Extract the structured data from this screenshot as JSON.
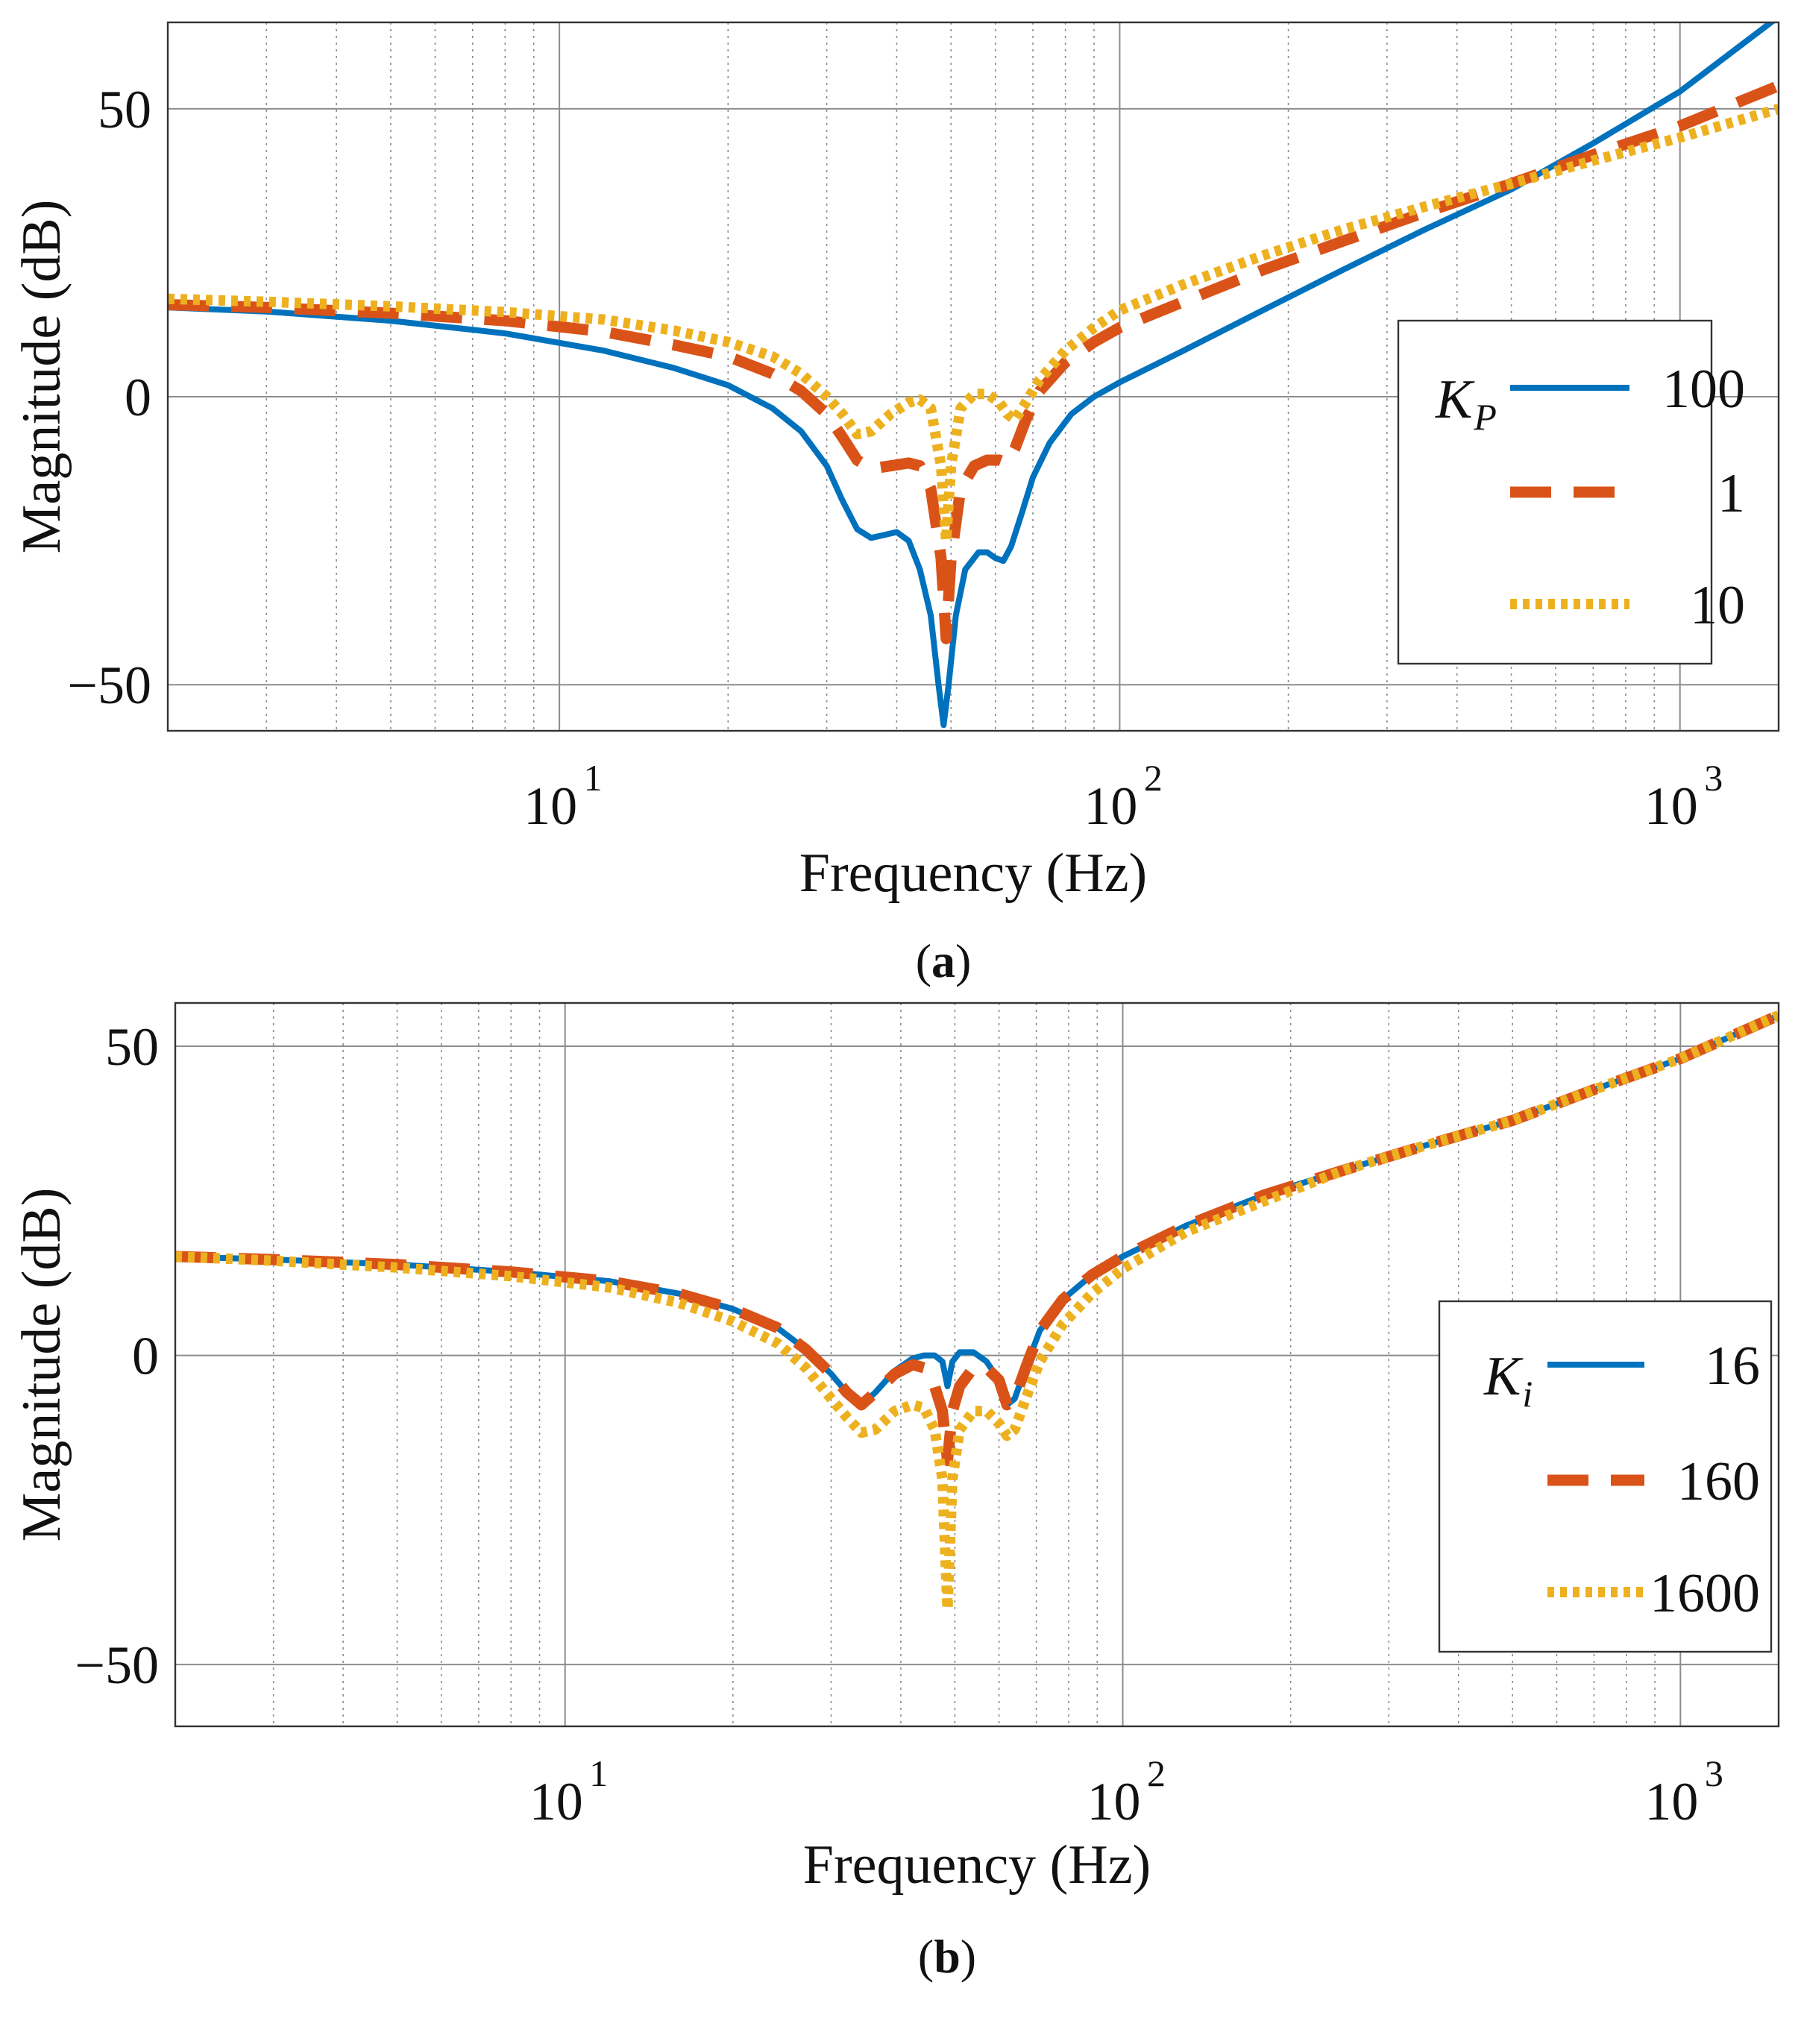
{
  "chart_data": [
    {
      "type": "line",
      "panel_label": "a",
      "xlabel": "Frequency  (Hz)",
      "ylabel": "Magnitude (dB)",
      "xscale": "log",
      "xlim": [
        2,
        1500
      ],
      "ylim": [
        -58,
        65
      ],
      "yticks": [
        -50,
        0,
        50
      ],
      "ytick_labels": [
        "−50",
        "0",
        "50"
      ],
      "xticks": [
        10,
        100,
        1000
      ],
      "xtick_labels": [
        {
          "base": "10",
          "exp": "1"
        },
        {
          "base": "10",
          "exp": "2"
        },
        {
          "base": "10",
          "exp": "3"
        }
      ],
      "grid": true,
      "legend_title": {
        "symbol": "K",
        "sub": "P"
      },
      "legend_position": "right",
      "series": [
        {
          "name": "100",
          "color": "#0072BD",
          "style": "solid",
          "points": [
            [
              2,
              15.5
            ],
            [
              3,
              14.8
            ],
            [
              5,
              13.2
            ],
            [
              8,
              11.0
            ],
            [
              12,
              8.0
            ],
            [
              16,
              5.0
            ],
            [
              20,
              2.0
            ],
            [
              24,
              -2.0
            ],
            [
              27,
              -6.0
            ],
            [
              30,
              -12.0
            ],
            [
              32,
              -18.0
            ],
            [
              34,
              -23.0
            ],
            [
              36,
              -24.5
            ],
            [
              38,
              -24.0
            ],
            [
              40,
              -23.5
            ],
            [
              42,
              -25.0
            ],
            [
              44,
              -30.0
            ],
            [
              46,
              -38.0
            ],
            [
              47.5,
              -50.0
            ],
            [
              48.5,
              -57.0
            ],
            [
              49.5,
              -50.0
            ],
            [
              51,
              -38.0
            ],
            [
              53,
              -30.0
            ],
            [
              56,
              -27.0
            ],
            [
              58,
              -27.0
            ],
            [
              60,
              -28.0
            ],
            [
              62,
              -28.5
            ],
            [
              64,
              -26.0
            ],
            [
              67,
              -20.0
            ],
            [
              70,
              -14.0
            ],
            [
              75,
              -8.0
            ],
            [
              82,
              -3.0
            ],
            [
              90,
              0.0
            ],
            [
              100,
              2.5
            ],
            [
              130,
              8.0
            ],
            [
              180,
              15.0
            ],
            [
              250,
              22.0
            ],
            [
              350,
              29.0
            ],
            [
              500,
              36.0
            ],
            [
              700,
              44.0
            ],
            [
              1000,
              53.0
            ],
            [
              1500,
              66.0
            ]
          ]
        },
        {
          "name": "1",
          "color": "#D95319",
          "style": "dashed",
          "points": [
            [
              2,
              16.0
            ],
            [
              3,
              15.5
            ],
            [
              5,
              14.5
            ],
            [
              8,
              13.2
            ],
            [
              12,
              11.3
            ],
            [
              16,
              9.0
            ],
            [
              20,
              7.0
            ],
            [
              24,
              4.0
            ],
            [
              27,
              1.0
            ],
            [
              30,
              -3.0
            ],
            [
              32,
              -7.0
            ],
            [
              34,
              -11.0
            ],
            [
              36,
              -12.5
            ],
            [
              39,
              -12.0
            ],
            [
              42,
              -11.5
            ],
            [
              44,
              -12.0
            ],
            [
              46,
              -16.0
            ],
            [
              48,
              -28.0
            ],
            [
              49,
              -42.0
            ],
            [
              50,
              -28.0
            ],
            [
              52,
              -16.0
            ],
            [
              55,
              -12.0
            ],
            [
              58,
              -11.0
            ],
            [
              61,
              -11.0
            ],
            [
              63,
              -11.5
            ],
            [
              65,
              -9.0
            ],
            [
              68,
              -4.0
            ],
            [
              72,
              1.0
            ],
            [
              80,
              6.0
            ],
            [
              90,
              9.5
            ],
            [
              100,
              12.0
            ],
            [
              130,
              16.5
            ],
            [
              180,
              22.0
            ],
            [
              250,
              27.0
            ],
            [
              350,
              32.0
            ],
            [
              500,
              37.0
            ],
            [
              700,
              42.0
            ],
            [
              1000,
              47.0
            ],
            [
              1500,
              54.0
            ]
          ]
        },
        {
          "name": "10",
          "color": "#EDB120",
          "style": "dotted",
          "points": [
            [
              2,
              17.0
            ],
            [
              3,
              16.5
            ],
            [
              5,
              15.7
            ],
            [
              8,
              14.7
            ],
            [
              12,
              13.4
            ],
            [
              16,
              11.5
            ],
            [
              20,
              9.5
            ],
            [
              24,
              7.0
            ],
            [
              27,
              4.0
            ],
            [
              30,
              0.0
            ],
            [
              32,
              -3.0
            ],
            [
              34,
              -6.5
            ],
            [
              36,
              -6.0
            ],
            [
              39,
              -3.0
            ],
            [
              42,
              -1.0
            ],
            [
              44,
              -0.5
            ],
            [
              46,
              -2.0
            ],
            [
              48,
              -12.0
            ],
            [
              49,
              -25.0
            ],
            [
              50,
              -12.0
            ],
            [
              52,
              -2.0
            ],
            [
              55,
              0.5
            ],
            [
              58,
              0.5
            ],
            [
              61,
              -1.0
            ],
            [
              63,
              -3.0
            ],
            [
              65,
              -4.0
            ],
            [
              68,
              -1.0
            ],
            [
              72,
              3.0
            ],
            [
              80,
              8.0
            ],
            [
              90,
              12.0
            ],
            [
              100,
              15.0
            ],
            [
              130,
              19.5
            ],
            [
              180,
              24.5
            ],
            [
              250,
              29.0
            ],
            [
              350,
              33.0
            ],
            [
              500,
              37.0
            ],
            [
              700,
              41.0
            ],
            [
              1000,
              45.0
            ],
            [
              1500,
              50.0
            ]
          ]
        }
      ]
    },
    {
      "type": "line",
      "panel_label": "b",
      "xlabel": "Frequency  (Hz)",
      "ylabel": "Magnitude (dB)",
      "xscale": "log",
      "xlim": [
        2,
        1500
      ],
      "ylim": [
        -60,
        57
      ],
      "yticks": [
        -50,
        0,
        50
      ],
      "ytick_labels": [
        "−50",
        "0",
        "50"
      ],
      "xticks": [
        10,
        100,
        1000
      ],
      "xtick_labels": [
        {
          "base": "10",
          "exp": "1"
        },
        {
          "base": "10",
          "exp": "2"
        },
        {
          "base": "10",
          "exp": "3"
        }
      ],
      "grid": true,
      "legend_title": {
        "symbol": "K",
        "sub": "i"
      },
      "legend_position": "right",
      "series": [
        {
          "name": "16",
          "color": "#0072BD",
          "style": "solid",
          "points": [
            [
              2,
              16.0
            ],
            [
              3,
              15.5
            ],
            [
              5,
              14.7
            ],
            [
              8,
              13.5
            ],
            [
              12,
              12.0
            ],
            [
              16,
              10.0
            ],
            [
              20,
              7.5
            ],
            [
              24,
              4.5
            ],
            [
              27,
              1.0
            ],
            [
              30,
              -3.0
            ],
            [
              32,
              -6.0
            ],
            [
              34,
              -8.0
            ],
            [
              36,
              -6.0
            ],
            [
              39,
              -2.5
            ],
            [
              42,
              -0.5
            ],
            [
              44,
              0.0
            ],
            [
              46,
              0.0
            ],
            [
              47.5,
              -1.0
            ],
            [
              48.5,
              -5.0
            ],
            [
              49.5,
              -1.0
            ],
            [
              51,
              0.5
            ],
            [
              54,
              0.5
            ],
            [
              57,
              -1.0
            ],
            [
              60,
              -4.0
            ],
            [
              62,
              -8.0
            ],
            [
              64,
              -7.0
            ],
            [
              67,
              -2.0
            ],
            [
              71,
              4.0
            ],
            [
              78,
              9.0
            ],
            [
              88,
              13.0
            ],
            [
              100,
              16.0
            ],
            [
              130,
              21.0
            ],
            [
              180,
              26.0
            ],
            [
              250,
              30.0
            ],
            [
              350,
              34.0
            ],
            [
              500,
              38.0
            ],
            [
              700,
              43.0
            ],
            [
              1000,
              48.0
            ],
            [
              1500,
              55.0
            ]
          ]
        },
        {
          "name": "160",
          "color": "#D95319",
          "style": "dashed",
          "points": [
            [
              2,
              16.0
            ],
            [
              3,
              15.5
            ],
            [
              5,
              14.7
            ],
            [
              8,
              13.5
            ],
            [
              12,
              12.0
            ],
            [
              16,
              10.0
            ],
            [
              20,
              7.5
            ],
            [
              24,
              4.5
            ],
            [
              27,
              1.0
            ],
            [
              30,
              -3.0
            ],
            [
              32,
              -6.0
            ],
            [
              34,
              -8.0
            ],
            [
              36,
              -6.0
            ],
            [
              39,
              -3.0
            ],
            [
              42,
              -1.5
            ],
            [
              44,
              -2.0
            ],
            [
              46,
              -5.0
            ],
            [
              47.5,
              -9.0
            ],
            [
              48.5,
              -17.0
            ],
            [
              49.5,
              -9.0
            ],
            [
              51,
              -5.0
            ],
            [
              54,
              -2.0
            ],
            [
              57,
              -2.0
            ],
            [
              60,
              -4.0
            ],
            [
              62,
              -8.0
            ],
            [
              64,
              -7.0
            ],
            [
              67,
              -2.0
            ],
            [
              71,
              4.0
            ],
            [
              78,
              9.0
            ],
            [
              88,
              13.0
            ],
            [
              100,
              16.0
            ],
            [
              130,
              21.0
            ],
            [
              180,
              26.0
            ],
            [
              250,
              30.0
            ],
            [
              350,
              34.0
            ],
            [
              500,
              38.0
            ],
            [
              700,
              43.0
            ],
            [
              1000,
              48.0
            ],
            [
              1500,
              55.0
            ]
          ]
        },
        {
          "name": "1600",
          "color": "#EDB120",
          "style": "dotted",
          "points": [
            [
              2,
              16.0
            ],
            [
              3,
              15.3
            ],
            [
              5,
              14.2
            ],
            [
              8,
              12.8
            ],
            [
              12,
              11.0
            ],
            [
              16,
              8.5
            ],
            [
              20,
              5.5
            ],
            [
              24,
              2.0
            ],
            [
              27,
              -2.0
            ],
            [
              30,
              -7.0
            ],
            [
              32,
              -10.0
            ],
            [
              34,
              -12.5
            ],
            [
              36,
              -12.0
            ],
            [
              39,
              -9.0
            ],
            [
              42,
              -8.0
            ],
            [
              44,
              -8.5
            ],
            [
              46,
              -12.0
            ],
            [
              47.5,
              -20.0
            ],
            [
              48.5,
              -41.0
            ],
            [
              49.5,
              -20.0
            ],
            [
              51,
              -12.0
            ],
            [
              54,
              -9.0
            ],
            [
              57,
              -9.0
            ],
            [
              60,
              -11.0
            ],
            [
              62,
              -13.0
            ],
            [
              64,
              -12.0
            ],
            [
              67,
              -7.0
            ],
            [
              71,
              -1.0
            ],
            [
              78,
              5.0
            ],
            [
              88,
              10.0
            ],
            [
              100,
              14.0
            ],
            [
              130,
              20.0
            ],
            [
              180,
              25.0
            ],
            [
              250,
              30.0
            ],
            [
              350,
              34.0
            ],
            [
              500,
              38.0
            ],
            [
              700,
              43.0
            ],
            [
              1000,
              48.0
            ],
            [
              1500,
              55.0
            ]
          ]
        }
      ]
    }
  ]
}
